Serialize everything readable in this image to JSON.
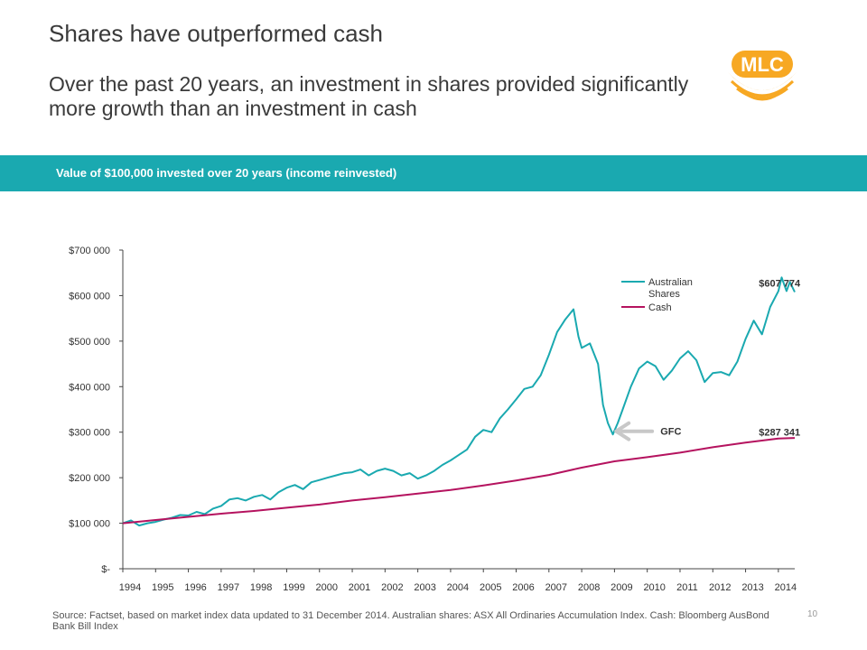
{
  "header": {
    "title": "Shares have outperformed cash",
    "subtitle": "Over the past 20 years, an investment in shares provided significantly more growth than an investment in cash"
  },
  "logo": {
    "text": "MLC",
    "color": "#f7a823"
  },
  "band": {
    "text": "Value of $100,000 invested over 20 years (income reinvested)",
    "color": "#1aa9b0"
  },
  "chart_data": {
    "type": "line",
    "title": "",
    "xlabel": "",
    "ylabel": "",
    "xlim": [
      1994,
      2014.5
    ],
    "ylim": [
      0,
      700000
    ],
    "grid": false,
    "legend": "top-right",
    "x_ticks": [
      "1994",
      "1995",
      "1996",
      "1997",
      "1998",
      "1999",
      "2000",
      "2001",
      "2002",
      "2003",
      "2004",
      "2005",
      "2006",
      "2007",
      "2008",
      "2009",
      "2010",
      "2011",
      "2012",
      "2013",
      "2014"
    ],
    "y_ticks": [
      {
        "value": 0,
        "label": "$-"
      },
      {
        "value": 100000,
        "label": "$100 000"
      },
      {
        "value": 200000,
        "label": "$200 000"
      },
      {
        "value": 300000,
        "label": "$300 000"
      },
      {
        "value": 400000,
        "label": "$400 000"
      },
      {
        "value": 500000,
        "label": "$500 000"
      },
      {
        "value": 600000,
        "label": "$600 000"
      },
      {
        "value": 700000,
        "label": "$700 000"
      }
    ],
    "series": [
      {
        "name": "Australian Shares",
        "color": "#1aa9b0",
        "points": [
          [
            1994.0,
            100000
          ],
          [
            1994.25,
            106000
          ],
          [
            1994.5,
            95000
          ],
          [
            1994.75,
            100000
          ],
          [
            1995.0,
            103000
          ],
          [
            1995.25,
            108000
          ],
          [
            1995.5,
            112000
          ],
          [
            1995.75,
            118000
          ],
          [
            1996.0,
            117000
          ],
          [
            1996.25,
            125000
          ],
          [
            1996.5,
            120000
          ],
          [
            1996.75,
            132000
          ],
          [
            1997.0,
            138000
          ],
          [
            1997.25,
            152000
          ],
          [
            1997.5,
            155000
          ],
          [
            1997.75,
            150000
          ],
          [
            1998.0,
            158000
          ],
          [
            1998.25,
            162000
          ],
          [
            1998.5,
            152000
          ],
          [
            1998.75,
            168000
          ],
          [
            1999.0,
            178000
          ],
          [
            1999.25,
            184000
          ],
          [
            1999.5,
            175000
          ],
          [
            1999.75,
            190000
          ],
          [
            2000.0,
            195000
          ],
          [
            2000.25,
            200000
          ],
          [
            2000.5,
            205000
          ],
          [
            2000.75,
            210000
          ],
          [
            2001.0,
            212000
          ],
          [
            2001.25,
            218000
          ],
          [
            2001.5,
            205000
          ],
          [
            2001.75,
            215000
          ],
          [
            2002.0,
            220000
          ],
          [
            2002.25,
            215000
          ],
          [
            2002.5,
            205000
          ],
          [
            2002.75,
            210000
          ],
          [
            2003.0,
            198000
          ],
          [
            2003.25,
            205000
          ],
          [
            2003.5,
            215000
          ],
          [
            2003.75,
            228000
          ],
          [
            2004.0,
            238000
          ],
          [
            2004.25,
            250000
          ],
          [
            2004.5,
            262000
          ],
          [
            2004.75,
            290000
          ],
          [
            2005.0,
            305000
          ],
          [
            2005.25,
            300000
          ],
          [
            2005.5,
            330000
          ],
          [
            2005.75,
            350000
          ],
          [
            2006.0,
            372000
          ],
          [
            2006.25,
            395000
          ],
          [
            2006.5,
            400000
          ],
          [
            2006.75,
            425000
          ],
          [
            2007.0,
            470000
          ],
          [
            2007.25,
            520000
          ],
          [
            2007.5,
            548000
          ],
          [
            2007.75,
            570000
          ],
          [
            2007.9,
            510000
          ],
          [
            2008.0,
            485000
          ],
          [
            2008.25,
            495000
          ],
          [
            2008.5,
            450000
          ],
          [
            2008.65,
            360000
          ],
          [
            2008.8,
            320000
          ],
          [
            2008.95,
            295000
          ],
          [
            2009.1,
            320000
          ],
          [
            2009.25,
            350000
          ],
          [
            2009.5,
            400000
          ],
          [
            2009.75,
            440000
          ],
          [
            2010.0,
            455000
          ],
          [
            2010.25,
            445000
          ],
          [
            2010.5,
            415000
          ],
          [
            2010.75,
            435000
          ],
          [
            2011.0,
            462000
          ],
          [
            2011.25,
            478000
          ],
          [
            2011.5,
            458000
          ],
          [
            2011.75,
            410000
          ],
          [
            2012.0,
            430000
          ],
          [
            2012.25,
            432000
          ],
          [
            2012.5,
            425000
          ],
          [
            2012.75,
            455000
          ],
          [
            2013.0,
            505000
          ],
          [
            2013.25,
            545000
          ],
          [
            2013.5,
            515000
          ],
          [
            2013.75,
            575000
          ],
          [
            2014.0,
            610000
          ],
          [
            2014.1,
            640000
          ],
          [
            2014.25,
            610000
          ],
          [
            2014.35,
            630000
          ],
          [
            2014.5,
            607774
          ]
        ]
      },
      {
        "name": "Cash",
        "color": "#b5135f",
        "points": [
          [
            1994.0,
            100000
          ],
          [
            1995.0,
            107000
          ],
          [
            1996.0,
            114000
          ],
          [
            1997.0,
            121000
          ],
          [
            1998.0,
            127000
          ],
          [
            1999.0,
            134000
          ],
          [
            2000.0,
            141000
          ],
          [
            2001.0,
            150000
          ],
          [
            2002.0,
            157000
          ],
          [
            2003.0,
            165000
          ],
          [
            2004.0,
            173000
          ],
          [
            2005.0,
            183000
          ],
          [
            2006.0,
            194000
          ],
          [
            2007.0,
            206000
          ],
          [
            2008.0,
            222000
          ],
          [
            2009.0,
            236000
          ],
          [
            2010.0,
            245000
          ],
          [
            2011.0,
            255000
          ],
          [
            2012.0,
            267000
          ],
          [
            2013.0,
            277000
          ],
          [
            2014.0,
            286000
          ],
          [
            2014.5,
            287341
          ]
        ]
      }
    ],
    "annotations": [
      {
        "text": "$607 774",
        "x": 2014.45,
        "y": 628000
      },
      {
        "text": "$287 341",
        "x": 2014.45,
        "y": 300000
      },
      {
        "text": "GFC",
        "x": 2010.4,
        "y": 302000
      }
    ],
    "arrow": {
      "from": [
        2010.15,
        302000
      ],
      "to": [
        2009.05,
        302000
      ],
      "color": "#c8c8c8"
    },
    "legend_items": [
      {
        "label": "Australian Shares",
        "color": "#1aa9b0"
      },
      {
        "label": "Cash",
        "color": "#b5135f"
      }
    ]
  },
  "footer": {
    "source": "Source: Factset, based on market index data updated to 31 December 2014. Australian shares: ASX All Ordinaries Accumulation Index. Cash: Bloomberg AusBond Bank Bill Index",
    "page_number": "10"
  }
}
